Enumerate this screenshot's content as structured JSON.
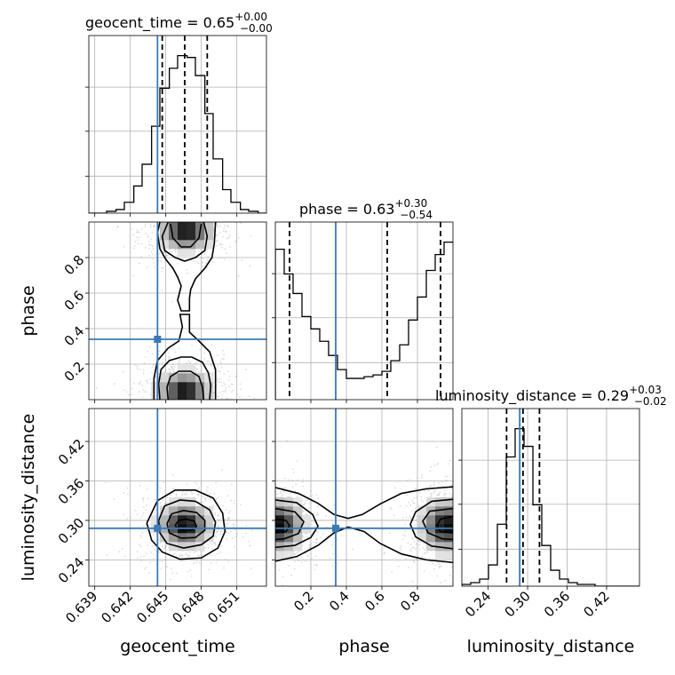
{
  "chart_data": {
    "type": "corner",
    "parameters": [
      "geocent_time",
      "phase",
      "luminosity_distance"
    ],
    "truth_color": "#3b79b5",
    "truths": {
      "geocent_time": 0.6443,
      "phase": 0.34,
      "luminosity_distance": 0.288
    },
    "titles": [
      {
        "param": "geocent_time",
        "text": "geocent_time = 0.65",
        "sup": "+0.00",
        "sub": "−0.00"
      },
      {
        "param": "phase",
        "text": "phase = 0.63",
        "sup": "+0.30",
        "sub": "−0.54"
      },
      {
        "param": "luminosity_distance",
        "text": "luminosity_distance = 0.29",
        "sup": "+0.03",
        "sub": "−0.02"
      }
    ],
    "axes": {
      "geocent_time": {
        "range": [
          0.6385,
          0.6535
        ],
        "ticks": [
          0.639,
          0.642,
          0.645,
          0.648,
          0.651
        ],
        "tick_labels": [
          "0.639",
          "0.642",
          "0.645",
          "0.648",
          "0.651"
        ],
        "label": "geocent_time"
      },
      "phase": {
        "range": [
          0.0,
          1.0
        ],
        "ticks": [
          0.2,
          0.4,
          0.6,
          0.8
        ],
        "tick_labels": [
          "0.2",
          "0.4",
          "0.6",
          "0.8"
        ],
        "label": "phase"
      },
      "luminosity_distance": {
        "range": [
          0.2,
          0.47
        ],
        "ticks": [
          0.24,
          0.3,
          0.36,
          0.42
        ],
        "tick_labels": [
          "0.24",
          "0.30",
          "0.36",
          "0.42"
        ],
        "label": "luminosity_distance"
      }
    },
    "histograms": {
      "geocent_time": {
        "edges": [
          0.6385,
          0.6393,
          0.64,
          0.6408,
          0.6415,
          0.6423,
          0.643,
          0.6438,
          0.6445,
          0.6453,
          0.646,
          0.6468,
          0.6475,
          0.6483,
          0.649,
          0.6498,
          0.6505,
          0.6513,
          0.652,
          0.6528,
          0.6535
        ],
        "counts": [
          0.0,
          0.0,
          0.01,
          0.02,
          0.06,
          0.15,
          0.27,
          0.48,
          0.69,
          0.8,
          0.87,
          0.86,
          0.76,
          0.55,
          0.3,
          0.13,
          0.06,
          0.02,
          0.01,
          0.0
        ],
        "quantiles": [
          0.6447,
          0.6466,
          0.6485
        ]
      },
      "phase": {
        "edges": [
          0.0,
          0.05,
          0.1,
          0.15,
          0.2,
          0.25,
          0.3,
          0.35,
          0.4,
          0.45,
          0.5,
          0.55,
          0.6,
          0.65,
          0.7,
          0.75,
          0.8,
          0.85,
          0.9,
          0.95,
          1.0
        ],
        "counts": [
          0.85,
          0.71,
          0.6,
          0.47,
          0.4,
          0.33,
          0.25,
          0.17,
          0.12,
          0.12,
          0.13,
          0.14,
          0.16,
          0.22,
          0.31,
          0.45,
          0.58,
          0.73,
          0.82,
          0.89
        ],
        "quantiles": [
          0.08,
          0.63,
          0.93
        ]
      },
      "luminosity_distance": {
        "edges": [
          0.2,
          0.2135,
          0.227,
          0.2405,
          0.254,
          0.2675,
          0.281,
          0.2945,
          0.308,
          0.3215,
          0.335,
          0.3485,
          0.362,
          0.3755,
          0.389,
          0.4025,
          0.416,
          0.4295,
          0.443,
          0.4565,
          0.47
        ],
        "counts": [
          0.01,
          0.02,
          0.04,
          0.12,
          0.35,
          0.73,
          0.89,
          0.79,
          0.46,
          0.23,
          0.09,
          0.04,
          0.02,
          0.01,
          0.01,
          0.0,
          0.0,
          0.0,
          0.0,
          0.0
        ],
        "quantiles": [
          0.268,
          0.293,
          0.318
        ]
      }
    },
    "pairs": [
      {
        "x": "geocent_time",
        "y": "phase",
        "modes": [
          {
            "cx": 0.6467,
            "cy": 0.95,
            "sx": 0.0011,
            "sy": 0.055
          },
          {
            "cx": 0.6466,
            "cy": 0.05,
            "sx": 0.0011,
            "sy": 0.055
          }
        ],
        "contours": [
          [
            [
              0.6454,
              0.99
            ],
            [
              0.6456,
              0.91
            ],
            [
              0.6463,
              0.86
            ],
            [
              0.6471,
              0.86
            ],
            [
              0.6478,
              0.91
            ],
            [
              0.648,
              0.99
            ]
          ],
          [
            [
              0.6452,
              1.0
            ],
            [
              0.6447,
              0.92
            ],
            [
              0.6449,
              0.84
            ],
            [
              0.6458,
              0.8
            ],
            [
              0.6466,
              0.78
            ],
            [
              0.6475,
              0.8
            ],
            [
              0.6483,
              0.84
            ],
            [
              0.6485,
              0.92
            ],
            [
              0.6482,
              1.0
            ]
          ],
          [
            [
              0.6445,
              1.0
            ],
            [
              0.6443,
              0.94
            ],
            [
              0.6445,
              0.85
            ],
            [
              0.645,
              0.79
            ],
            [
              0.6456,
              0.74
            ],
            [
              0.646,
              0.69
            ],
            [
              0.6463,
              0.64
            ],
            [
              0.646,
              0.56
            ],
            [
              0.6463,
              0.5
            ],
            [
              0.647,
              0.5
            ],
            [
              0.647,
              0.57
            ],
            [
              0.6471,
              0.62
            ],
            [
              0.6475,
              0.68
            ],
            [
              0.6483,
              0.74
            ],
            [
              0.6489,
              0.8
            ],
            [
              0.6491,
              0.88
            ],
            [
              0.6492,
              1.0
            ]
          ],
          [
            [
              0.6452,
              0.0
            ],
            [
              0.6451,
              0.07
            ],
            [
              0.6454,
              0.13
            ],
            [
              0.6461,
              0.16
            ],
            [
              0.6471,
              0.16
            ],
            [
              0.6478,
              0.13
            ],
            [
              0.6481,
              0.07
            ],
            [
              0.6482,
              0.0
            ]
          ],
          [
            [
              0.6445,
              0.0
            ],
            [
              0.6444,
              0.09
            ],
            [
              0.6446,
              0.17
            ],
            [
              0.6453,
              0.22
            ],
            [
              0.6463,
              0.24
            ],
            [
              0.6472,
              0.24
            ],
            [
              0.6481,
              0.21
            ],
            [
              0.6486,
              0.15
            ],
            [
              0.6488,
              0.08
            ],
            [
              0.6487,
              0.0
            ]
          ],
          [
            [
              0.644,
              0.0
            ],
            [
              0.644,
              0.12
            ],
            [
              0.6443,
              0.22
            ],
            [
              0.6452,
              0.29
            ],
            [
              0.6461,
              0.33
            ],
            [
              0.6464,
              0.41
            ],
            [
              0.6462,
              0.48
            ],
            [
              0.647,
              0.48
            ],
            [
              0.647,
              0.38
            ],
            [
              0.6478,
              0.33
            ],
            [
              0.6487,
              0.27
            ],
            [
              0.6492,
              0.17
            ],
            [
              0.6492,
              0.05
            ],
            [
              0.6492,
              0.0
            ]
          ]
        ]
      },
      {
        "x": "geocent_time",
        "y": "luminosity_distance",
        "modes": [
          {
            "cx": 0.6466,
            "cy": 0.293,
            "sx": 0.0011,
            "sy": 0.017
          }
        ],
        "contours": [
          [
            [
              0.6458,
              0.293
            ],
            [
              0.6461,
              0.3
            ],
            [
              0.6467,
              0.302
            ],
            [
              0.6474,
              0.299
            ],
            [
              0.6476,
              0.291
            ],
            [
              0.6472,
              0.285
            ],
            [
              0.6464,
              0.285
            ],
            [
              0.6459,
              0.289
            ],
            [
              0.6458,
              0.293
            ]
          ],
          [
            [
              0.6451,
              0.295
            ],
            [
              0.6455,
              0.31
            ],
            [
              0.6465,
              0.315
            ],
            [
              0.6476,
              0.312
            ],
            [
              0.6483,
              0.3
            ],
            [
              0.6483,
              0.285
            ],
            [
              0.6475,
              0.274
            ],
            [
              0.6463,
              0.273
            ],
            [
              0.6453,
              0.281
            ],
            [
              0.6451,
              0.295
            ]
          ],
          [
            [
              0.6444,
              0.3
            ],
            [
              0.6449,
              0.322
            ],
            [
              0.6462,
              0.331
            ],
            [
              0.6475,
              0.329
            ],
            [
              0.6487,
              0.316
            ],
            [
              0.6492,
              0.297
            ],
            [
              0.649,
              0.276
            ],
            [
              0.648,
              0.263
            ],
            [
              0.6465,
              0.258
            ],
            [
              0.6451,
              0.265
            ],
            [
              0.6445,
              0.281
            ],
            [
              0.6444,
              0.3
            ]
          ],
          [
            [
              0.6434,
              0.296
            ],
            [
              0.6443,
              0.33
            ],
            [
              0.6458,
              0.346
            ],
            [
              0.6475,
              0.346
            ],
            [
              0.649,
              0.334
            ],
            [
              0.6498,
              0.311
            ],
            [
              0.65,
              0.283
            ],
            [
              0.6494,
              0.258
            ],
            [
              0.648,
              0.243
            ],
            [
              0.6462,
              0.241
            ],
            [
              0.6447,
              0.252
            ],
            [
              0.6438,
              0.27
            ],
            [
              0.6434,
              0.296
            ]
          ]
        ]
      },
      {
        "x": "phase",
        "y": "luminosity_distance",
        "modes": [
          {
            "cx": 0.02,
            "cy": 0.292,
            "sx": 0.07,
            "sy": 0.02
          },
          {
            "cx": 0.96,
            "cy": 0.292,
            "sx": 0.07,
            "sy": 0.02
          }
        ],
        "contours": [
          [
            [
              0.0,
              0.302
            ],
            [
              0.06,
              0.3
            ],
            [
              0.08,
              0.292
            ],
            [
              0.06,
              0.283
            ],
            [
              0.0,
              0.281
            ]
          ],
          [
            [
              0.0,
              0.318
            ],
            [
              0.11,
              0.313
            ],
            [
              0.16,
              0.298
            ],
            [
              0.13,
              0.28
            ],
            [
              0.05,
              0.272
            ],
            [
              0.0,
              0.271
            ]
          ],
          [
            [
              0.0,
              0.331
            ],
            [
              0.12,
              0.327
            ],
            [
              0.21,
              0.309
            ],
            [
              0.24,
              0.291
            ],
            [
              0.2,
              0.274
            ],
            [
              0.11,
              0.262
            ],
            [
              0.0,
              0.259
            ]
          ],
          [
            [
              0.0,
              0.35
            ],
            [
              0.13,
              0.341
            ],
            [
              0.24,
              0.326
            ],
            [
              0.33,
              0.309
            ],
            [
              0.41,
              0.303
            ],
            [
              0.49,
              0.309
            ],
            [
              0.59,
              0.325
            ],
            [
              0.71,
              0.341
            ],
            [
              0.85,
              0.348
            ],
            [
              1.0,
              0.351
            ]
          ],
          [
            [
              0.0,
              0.238
            ],
            [
              0.12,
              0.245
            ],
            [
              0.24,
              0.262
            ],
            [
              0.33,
              0.281
            ],
            [
              0.41,
              0.29
            ],
            [
              0.5,
              0.283
            ],
            [
              0.59,
              0.265
            ],
            [
              0.71,
              0.249
            ],
            [
              0.85,
              0.24
            ],
            [
              1.0,
              0.236
            ]
          ],
          [
            [
              1.0,
              0.306
            ],
            [
              0.93,
              0.302
            ],
            [
              0.91,
              0.292
            ],
            [
              0.93,
              0.283
            ],
            [
              1.0,
              0.281
            ]
          ],
          [
            [
              1.0,
              0.318
            ],
            [
              0.87,
              0.314
            ],
            [
              0.83,
              0.299
            ],
            [
              0.86,
              0.281
            ],
            [
              0.94,
              0.272
            ],
            [
              1.0,
              0.271
            ]
          ],
          [
            [
              1.0,
              0.332
            ],
            [
              0.88,
              0.329
            ],
            [
              0.79,
              0.313
            ],
            [
              0.76,
              0.294
            ],
            [
              0.79,
              0.275
            ],
            [
              0.88,
              0.261
            ],
            [
              1.0,
              0.257
            ]
          ]
        ]
      }
    ]
  }
}
